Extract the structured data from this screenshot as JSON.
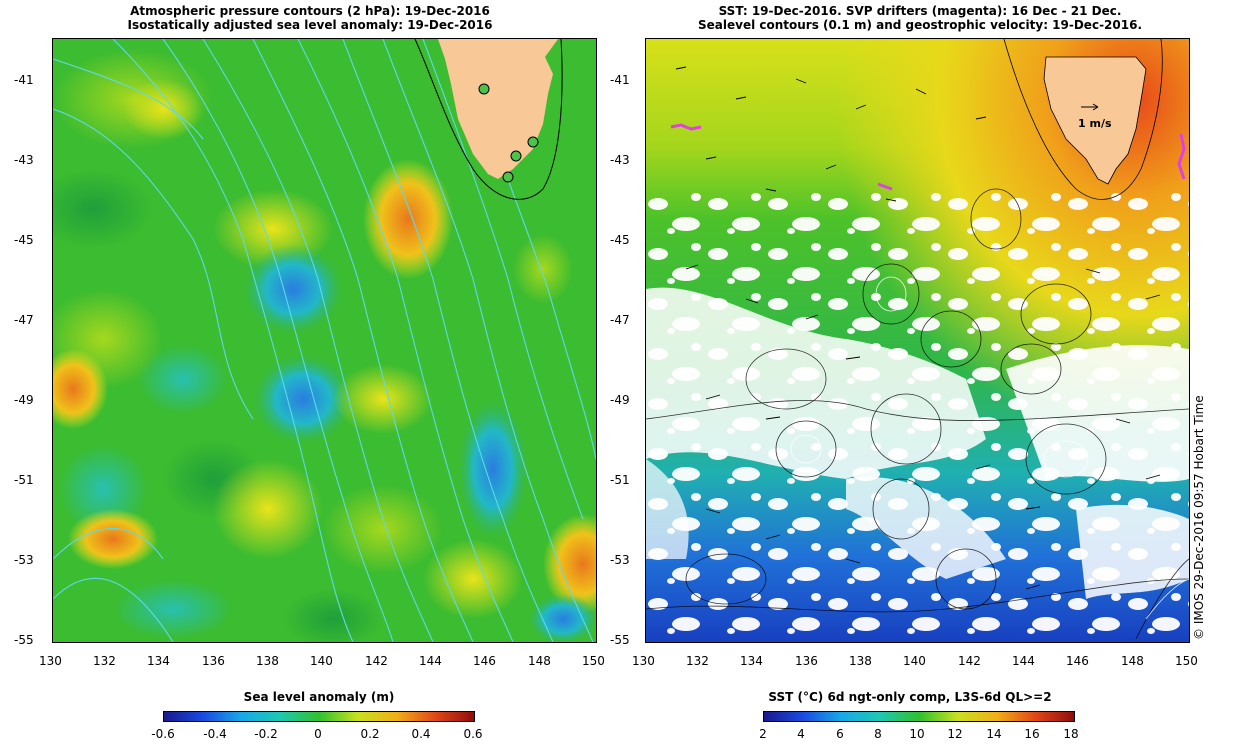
{
  "left_panel": {
    "title_line1": "Atmospheric pressure contours (2 hPa): 19-Dec-2016",
    "title_line2": "Isostatically adjusted sea level anomaly: 19-Dec-2016",
    "colorbar_title": "Sea level anomaly (m)",
    "colorbar_ticks": [
      "-0.6",
      "-0.4",
      "-0.2",
      "0",
      "0.2",
      "0.4",
      "0.6"
    ]
  },
  "right_panel": {
    "title_line1": "SST: 19-Dec-2016. SVP drifters (magenta): 16 Dec - 21 Dec.",
    "title_line2": "Sealevel contours (0.1 m) and geostrophic velocity: 19-Dec-2016.",
    "scale_label": "1 m/s",
    "colorbar_title": "SST (°C) 6d ngt-only comp, L3S-6d QL>=2",
    "colorbar_ticks": [
      "2",
      "4",
      "6",
      "8",
      "10",
      "12",
      "14",
      "16",
      "18"
    ],
    "credit": "© IMOS 29-Dec-2016 09:57 Hobart Time"
  },
  "axes": {
    "y_ticks": [
      "-41",
      "-43",
      "-45",
      "-47",
      "-49",
      "-51",
      "-53",
      "-55"
    ],
    "x_ticks": [
      "130",
      "132",
      "134",
      "136",
      "138",
      "140",
      "142",
      "144",
      "146",
      "148",
      "150"
    ]
  },
  "colors": {
    "land": "#f8c896",
    "ocean_mid": "#3fbf2c",
    "contour": "#5fd8e8",
    "drifter": "#e040e0",
    "station": "#4cc44c"
  }
}
